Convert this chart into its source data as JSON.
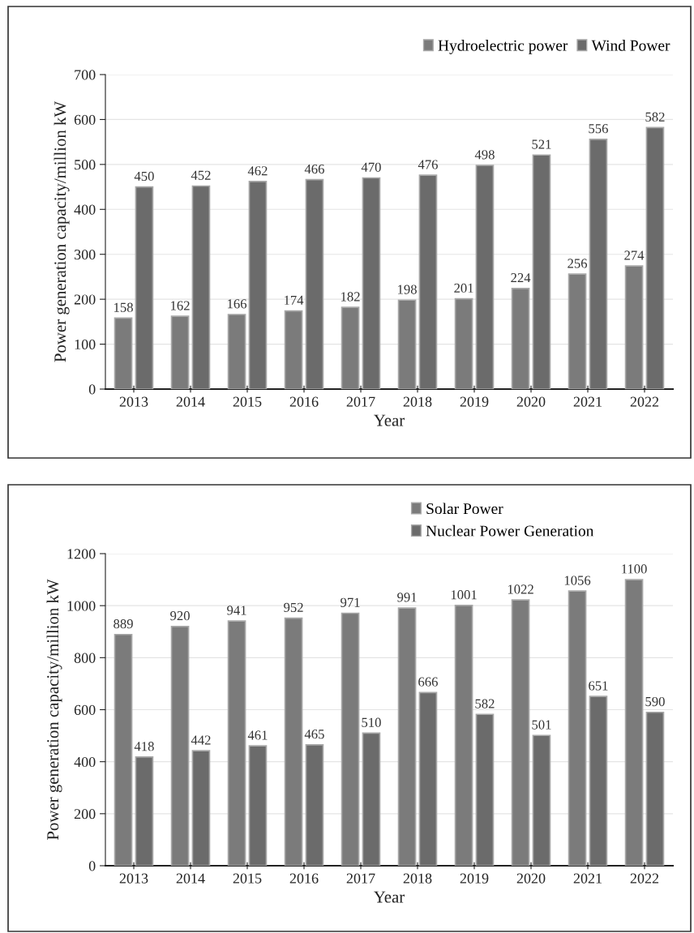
{
  "chart_data": [
    {
      "type": "bar",
      "xlabel": "Year",
      "ylabel": "Power generation capacity/million kW",
      "categories": [
        "2013",
        "2014",
        "2015",
        "2016",
        "2017",
        "2018",
        "2019",
        "2020",
        "2021",
        "2022"
      ],
      "series": [
        {
          "name": "Hydroelectric power",
          "color": "#7b7b7b",
          "values": [
            158,
            162,
            166,
            174,
            182,
            198,
            201,
            224,
            256,
            274
          ]
        },
        {
          "name": "Wind Power",
          "color": "#6b6b6b",
          "values": [
            450,
            452,
            462,
            466,
            470,
            476,
            498,
            521,
            556,
            582
          ]
        }
      ],
      "ylim": [
        0,
        700
      ],
      "yticks": [
        0,
        100,
        200,
        300,
        400,
        500,
        600,
        700
      ],
      "grid": "y",
      "legend": "top right",
      "data_labels": true
    },
    {
      "type": "bar",
      "xlabel": "Year",
      "ylabel": "Power generation capacity/million kW",
      "categories": [
        "2013",
        "2014",
        "2015",
        "2016",
        "2017",
        "2018",
        "2019",
        "2020",
        "2021",
        "2022"
      ],
      "series": [
        {
          "name": "Solar Power",
          "color": "#7b7b7b",
          "values": [
            889,
            920,
            941,
            952,
            971,
            991,
            1001,
            1022,
            1056,
            1100
          ]
        },
        {
          "name": "Nuclear Power Generation",
          "color": "#6b6b6b",
          "values": [
            418,
            442,
            461,
            465,
            510,
            666,
            582,
            501,
            651,
            590
          ]
        }
      ],
      "ylim": [
        0,
        1200
      ],
      "yticks": [
        0,
        200,
        400,
        600,
        800,
        1000,
        1200
      ],
      "grid": "y",
      "legend": "top",
      "data_labels": true
    }
  ]
}
